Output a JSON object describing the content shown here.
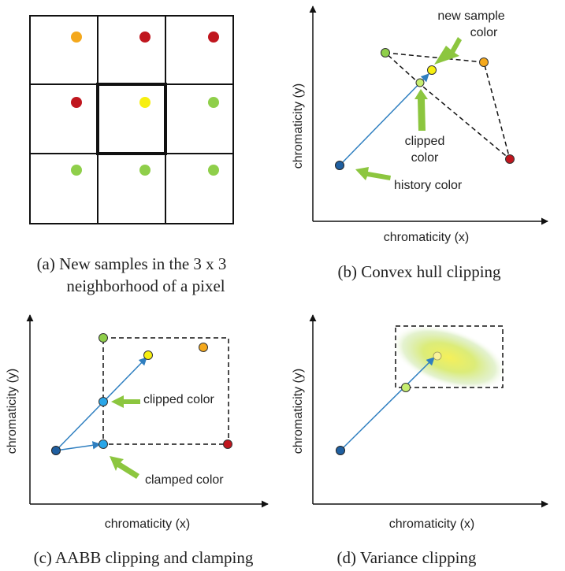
{
  "panel_a": {
    "caption_line1": "(a) New samples in the 3 x 3",
    "caption_line2": "neighborhood of a pixel",
    "grid": [
      [
        "orange",
        "red",
        "red"
      ],
      [
        "red",
        "yellow",
        "green"
      ],
      [
        "green",
        "green",
        "green"
      ]
    ]
  },
  "panel_b": {
    "caption": "(b) Convex hull clipping",
    "xlabel": "chromaticity (x)",
    "ylabel": "chromaticity (y)",
    "label_new_sample_1": "new sample",
    "label_new_sample_2": "color",
    "label_clipped_1": "clipped",
    "label_clipped_2": "color",
    "label_history": "history color"
  },
  "panel_c": {
    "caption": "(c) AABB clipping and clamping",
    "xlabel": "chromaticity (x)",
    "ylabel": "chromaticity (y)",
    "label_clipped": "clipped color",
    "label_clamped": "clamped color"
  },
  "panel_d": {
    "caption": "(d) Variance clipping",
    "xlabel": "chromaticity (x)",
    "ylabel": "chromaticity (y)"
  },
  "colors": {
    "orange": "#f4a81c",
    "red": "#c0161e",
    "yellow": "#f7ef10",
    "green": "#8fcf4a",
    "blue_dark": "#1f5fa0",
    "blue_light": "#2aa6e8",
    "arrow_green": "#8cc63f",
    "line_blue": "#2f7fc0"
  }
}
